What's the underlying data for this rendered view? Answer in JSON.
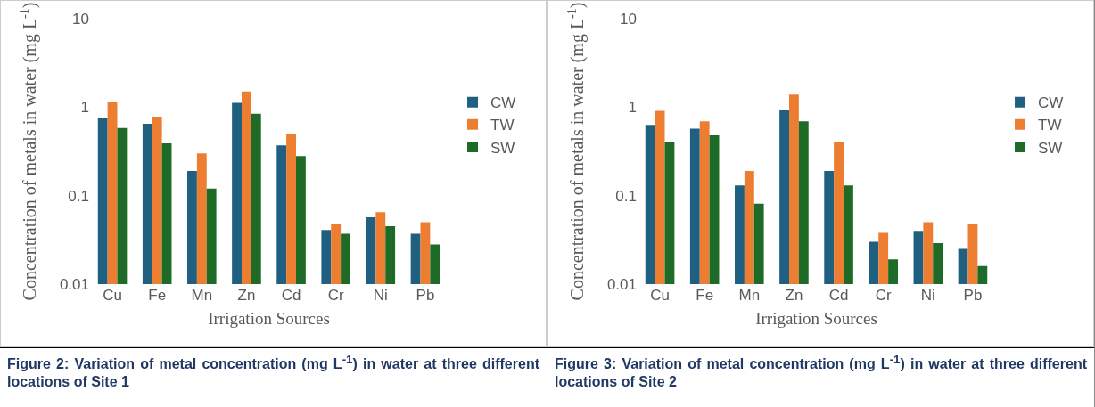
{
  "chart_data": [
    {
      "type": "bar",
      "ylabel": "Concentration of metals in water (mg L$^{-1}$)",
      "xlabel": "Irrigation Sources",
      "categories": [
        "Cu",
        "Fe",
        "Mn",
        "Zn",
        "Cd",
        "Cr",
        "Ni",
        "Pb"
      ],
      "log": "y",
      "ylim": [
        0.01,
        10
      ],
      "yticks": [
        0.01,
        0.1,
        1,
        10
      ],
      "grid": false,
      "legend": "right",
      "series": [
        {
          "name": "CW",
          "color": "#1f5f80",
          "values": [
            0.75,
            0.65,
            0.19,
            1.12,
            0.37,
            0.041,
            0.057,
            0.037
          ]
        },
        {
          "name": "TW",
          "color": "#ed7d31",
          "values": [
            1.14,
            0.78,
            0.3,
            1.5,
            0.49,
            0.048,
            0.065,
            0.05
          ]
        },
        {
          "name": "SW",
          "color": "#1e6b28",
          "values": [
            0.58,
            0.39,
            0.12,
            0.84,
            0.28,
            0.037,
            0.045,
            0.028
          ]
        }
      ],
      "annotations": [
        "Figure 2: Variation of metal concentration (mg L$^{-1}$) in water at three different locations of Site 1"
      ]
    },
    {
      "type": "bar",
      "ylabel": "Concentration of metals in water (mg L$^{-1}$)",
      "xlabel": "Irrigation Sources",
      "categories": [
        "Cu",
        "Fe",
        "Mn",
        "Zn",
        "Cd",
        "Cr",
        "Ni",
        "Pb"
      ],
      "log": "y",
      "ylim": [
        0.01,
        10
      ],
      "yticks": [
        0.01,
        0.1,
        1,
        10
      ],
      "grid": false,
      "legend": "right",
      "series": [
        {
          "name": "CW",
          "color": "#1f5f80",
          "values": [
            0.63,
            0.57,
            0.13,
            0.93,
            0.19,
            0.03,
            0.04,
            0.025
          ]
        },
        {
          "name": "TW",
          "color": "#ed7d31",
          "values": [
            0.91,
            0.69,
            0.19,
            1.39,
            0.4,
            0.038,
            0.05,
            0.048
          ]
        },
        {
          "name": "SW",
          "color": "#1e6b28",
          "values": [
            0.4,
            0.48,
            0.081,
            0.69,
            0.13,
            0.019,
            0.029,
            0.016
          ]
        }
      ],
      "annotations": [
        "Figure 3: Variation of metal concentration (mg L$^{-1}$) in water at three different locations of Site 2"
      ]
    }
  ]
}
